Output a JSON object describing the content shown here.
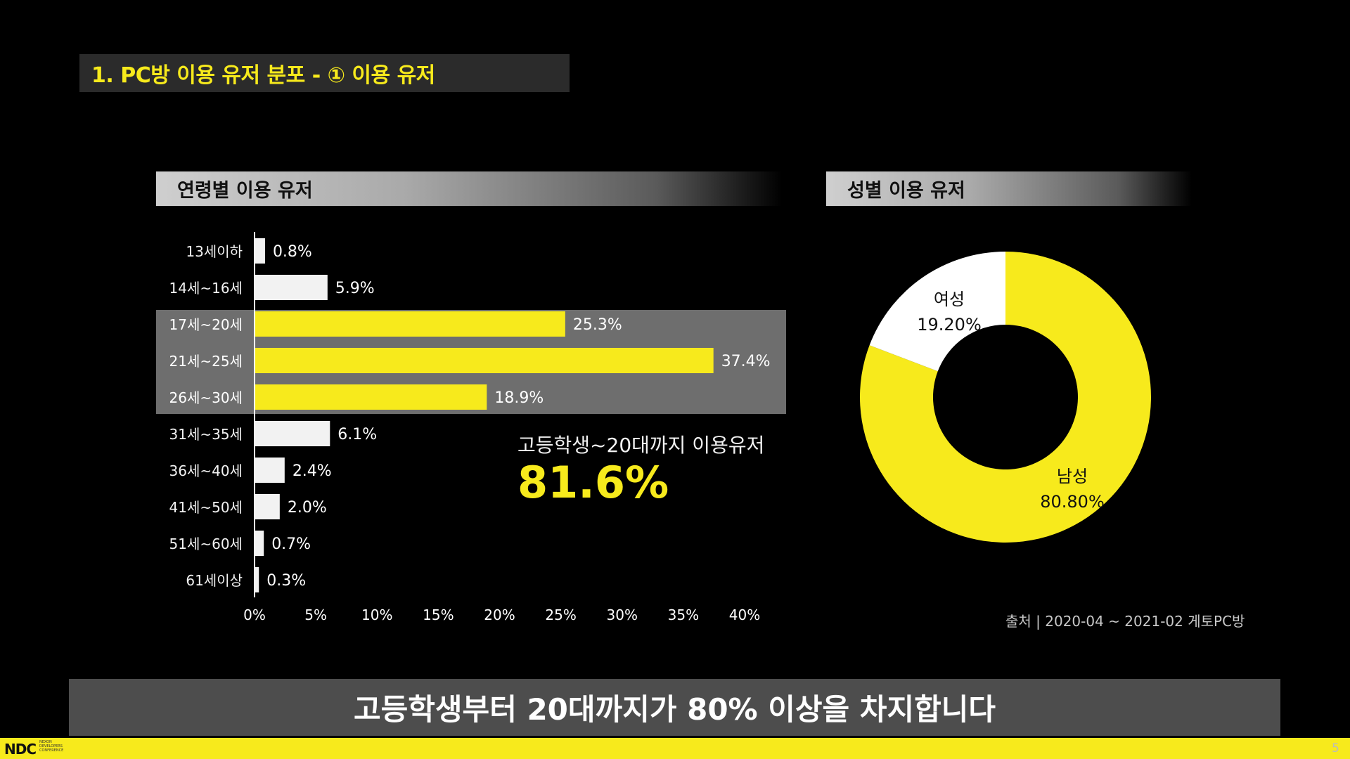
{
  "slide_title": "1. PC방 이용 유저 분포 - ① 이용 유저",
  "bar_section_title": "연령별 이용 유저",
  "pie_section_title": "성별 이용 유저",
  "callout": {
    "subtitle": "고등학생~20대까지 이용유저",
    "value": "81.6%"
  },
  "source": "출처 | 2020-04 ~ 2021-02 게토PC방",
  "banner": "고등학생부터 20대까지가 80% 이상을 차지합니다",
  "footer": {
    "logo": "NDC",
    "logo_sub": [
      "NEXON",
      "DEVELOPERS",
      "CONFERENCE"
    ],
    "page": "5"
  },
  "colors": {
    "accent": "#f7ea1c",
    "bar_default": "#f2f2f2",
    "highlight_band": "#6e6e6e",
    "background": "#000000"
  },
  "chart_data": [
    {
      "type": "bar",
      "orientation": "horizontal",
      "categories": [
        "13세이하",
        "14세~16세",
        "17세~20세",
        "21세~25세",
        "26세~30세",
        "31세~35세",
        "36세~40세",
        "41세~50세",
        "51세~60세",
        "61세이상"
      ],
      "values": [
        0.8,
        5.9,
        25.3,
        37.4,
        18.9,
        6.1,
        2.4,
        2.0,
        0.7,
        0.3
      ],
      "value_labels": [
        "0.8%",
        "5.9%",
        "25.3%",
        "37.4%",
        "18.9%",
        "6.1%",
        "2.4%",
        "2.0%",
        "0.7%",
        "0.3%"
      ],
      "highlighted": [
        2,
        3,
        4
      ],
      "xticks": [
        "0%",
        "5%",
        "10%",
        "15%",
        "20%",
        "25%",
        "30%",
        "35%",
        "40%"
      ],
      "xlim": [
        0,
        40
      ],
      "title": "연령별 이용 유저"
    },
    {
      "type": "pie",
      "style": "donut",
      "slices": [
        {
          "name": "남성",
          "value": 80.8,
          "label": "80.80%",
          "color": "#f7ea1c"
        },
        {
          "name": "여성",
          "value": 19.2,
          "label": "19.20%",
          "color": "#ffffff"
        }
      ],
      "title": "성별 이용 유저"
    }
  ]
}
